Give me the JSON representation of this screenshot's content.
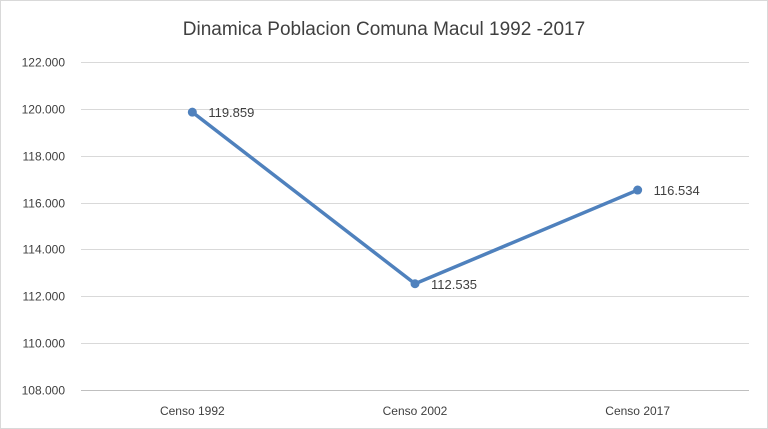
{
  "chart_data": {
    "type": "line",
    "title": "Dinamica Poblacion Comuna Macul 1992 -2017",
    "xlabel": "",
    "ylabel": "",
    "categories": [
      "Censo 1992",
      "Censo 2002",
      "Censo 2017"
    ],
    "series": [
      {
        "values": [
          119859,
          112535,
          116534
        ],
        "data_labels": [
          "119.859",
          "112.535",
          "116.534"
        ]
      }
    ],
    "ylim": [
      108000,
      122000
    ],
    "y_ticks": [
      108000,
      110000,
      112000,
      114000,
      116000,
      118000,
      120000,
      122000
    ],
    "y_tick_labels": [
      "108.000",
      "110.000",
      "112.000",
      "114.000",
      "116.000",
      "118.000",
      "120.000",
      "122.000"
    ],
    "grid": true,
    "legend": "none",
    "colors": {
      "series": "#4f81bd",
      "grid": "#d9d9d9",
      "text": "#404040"
    }
  }
}
